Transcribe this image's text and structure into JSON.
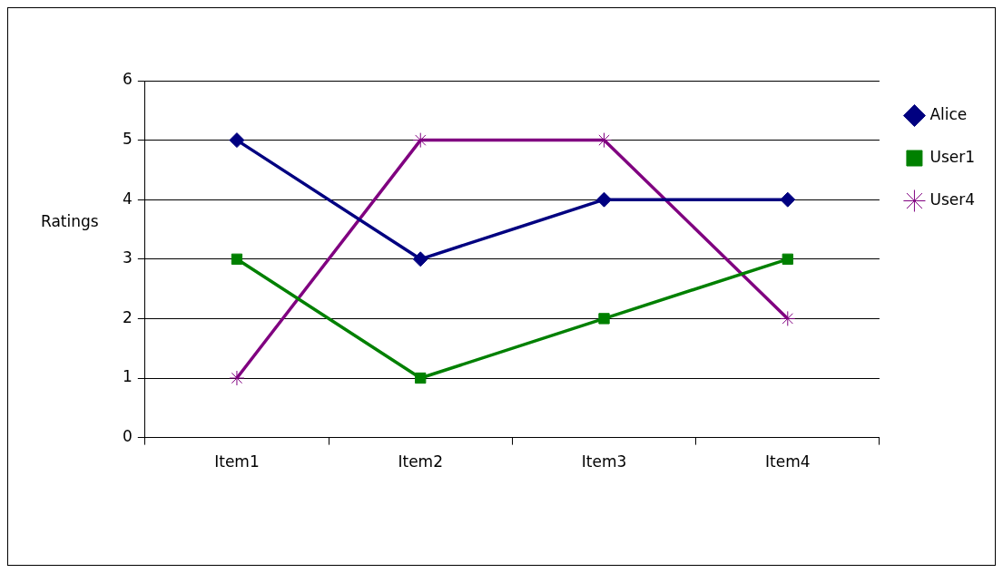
{
  "chart_data": {
    "type": "line",
    "ylabel": "Ratings",
    "categories": [
      "Item1",
      "Item2",
      "Item3",
      "Item4"
    ],
    "series": [
      {
        "name": "Alice",
        "color": "#000080",
        "values": [
          5,
          3,
          4,
          4
        ],
        "marker": "diamond"
      },
      {
        "name": "User1",
        "color": "#008000",
        "values": [
          3,
          1,
          2,
          3
        ],
        "marker": "square"
      },
      {
        "name": "User4",
        "color": "#800080",
        "values": [
          1,
          5,
          5,
          2
        ],
        "marker": "cross"
      }
    ],
    "ylim": [
      0,
      6
    ],
    "yticks": [
      0,
      1,
      2,
      3,
      4,
      5,
      6
    ],
    "grid": "y",
    "legend": "right",
    "line_style": "solid"
  }
}
